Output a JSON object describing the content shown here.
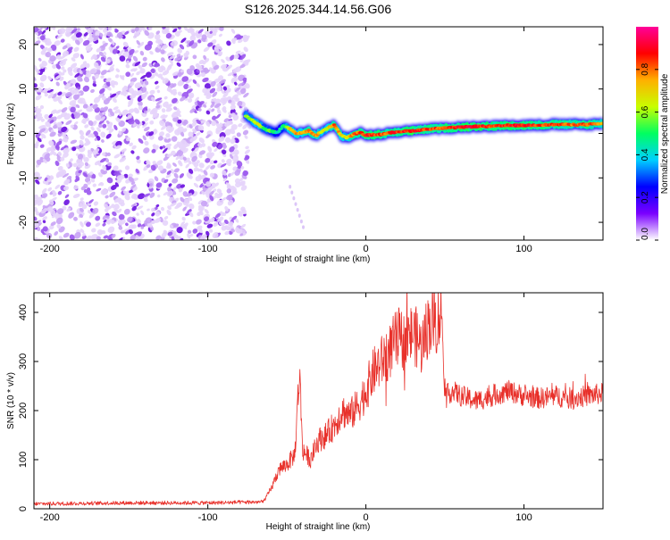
{
  "title": "S126.2025.344.14.56.G06",
  "colorbar": {
    "label": "Normalized spectral amplitude",
    "ticks": [
      "0.0",
      "0.2",
      "0.4",
      "0.6",
      "0.8"
    ],
    "tick_values": [
      0.0,
      0.2,
      0.4,
      0.6,
      0.8
    ],
    "range": [
      0,
      1
    ],
    "stops": [
      "#ffffff",
      "#7a00ff",
      "#0000ff",
      "#00d0ff",
      "#00ff60",
      "#c8ff00",
      "#ffb000",
      "#ff0000",
      "#ff0099"
    ]
  },
  "chart_data": [
    {
      "type": "heatmap",
      "xlabel": "Height of straight line (km)",
      "ylabel": "Frequency (Hz)",
      "xlim": [
        -210,
        150
      ],
      "ylim": [
        -24,
        24
      ],
      "xticks": [
        -200,
        -100,
        0,
        100
      ],
      "xtick_labels": [
        "-200",
        "-100",
        "0",
        "100"
      ],
      "yticks": [
        -20,
        -10,
        0,
        10,
        20
      ],
      "ytick_labels": [
        "-20",
        "-10",
        "0",
        "10",
        "20"
      ],
      "noise_region_x": [
        -210,
        -75
      ],
      "ridge": {
        "x": [
          -76,
          -72,
          -68,
          -64,
          -60,
          -56,
          -52,
          -48,
          -44,
          -40,
          -36,
          -32,
          -28,
          -24,
          -20,
          -16,
          -12,
          -8,
          -4,
          0,
          10,
          20,
          30,
          40,
          50,
          60,
          70,
          80,
          90,
          100,
          110,
          120,
          130,
          140,
          150
        ],
        "freq": [
          4.0,
          3.0,
          2.0,
          1.0,
          0.5,
          0.2,
          1.8,
          1.0,
          0.0,
          0.2,
          0.6,
          -0.6,
          0.4,
          1.2,
          2.0,
          -0.4,
          -1.0,
          -0.2,
          0.2,
          -0.4,
          -0.2,
          0.4,
          0.6,
          1.0,
          1.2,
          1.4,
          1.6,
          1.6,
          1.8,
          1.8,
          1.9,
          2.0,
          2.0,
          2.0,
          2.2
        ],
        "amplitude": [
          0.6,
          0.65,
          0.7,
          0.55,
          0.6,
          0.45,
          0.55,
          0.75,
          0.8,
          0.8,
          0.85,
          0.85,
          0.7,
          0.7,
          0.9,
          0.75,
          0.7,
          0.85,
          0.9,
          0.95,
          0.9,
          0.9,
          0.95,
          0.9,
          0.9,
          0.95,
          0.95,
          0.9,
          0.95,
          0.95,
          0.9,
          0.9,
          0.85,
          0.9,
          0.8
        ]
      }
    },
    {
      "type": "line",
      "xlabel": "Height of straight line (km)",
      "ylabel": "SNR (10 * v/v)",
      "xlim": [
        -210,
        150
      ],
      "ylim": [
        0,
        440
      ],
      "xticks": [
        -200,
        -100,
        0,
        100
      ],
      "xtick_labels": [
        "-200",
        "-100",
        "0",
        "100"
      ],
      "yticks": [
        0,
        100,
        200,
        300,
        400
      ],
      "ytick_labels": [
        "0",
        "100",
        "200",
        "300",
        "400"
      ],
      "color": "#e8302a",
      "series": [
        {
          "name": "SNR",
          "x": [
            -210,
            -150,
            -100,
            -65,
            -60,
            -55,
            -50,
            -45,
            -42,
            -40,
            -35,
            -30,
            -25,
            -20,
            -15,
            -10,
            -5,
            0,
            5,
            10,
            15,
            20,
            25,
            30,
            35,
            40,
            45,
            48,
            50,
            55,
            60,
            70,
            80,
            90,
            100,
            110,
            120,
            130,
            140,
            150
          ],
          "y": [
            10,
            12,
            12,
            14,
            40,
            80,
            90,
            110,
            280,
            120,
            100,
            140,
            150,
            170,
            200,
            190,
            210,
            240,
            280,
            300,
            320,
            350,
            340,
            360,
            330,
            380,
            380,
            400,
            230,
            240,
            230,
            220,
            230,
            240,
            230,
            225,
            230,
            225,
            230,
            235
          ]
        }
      ]
    }
  ]
}
